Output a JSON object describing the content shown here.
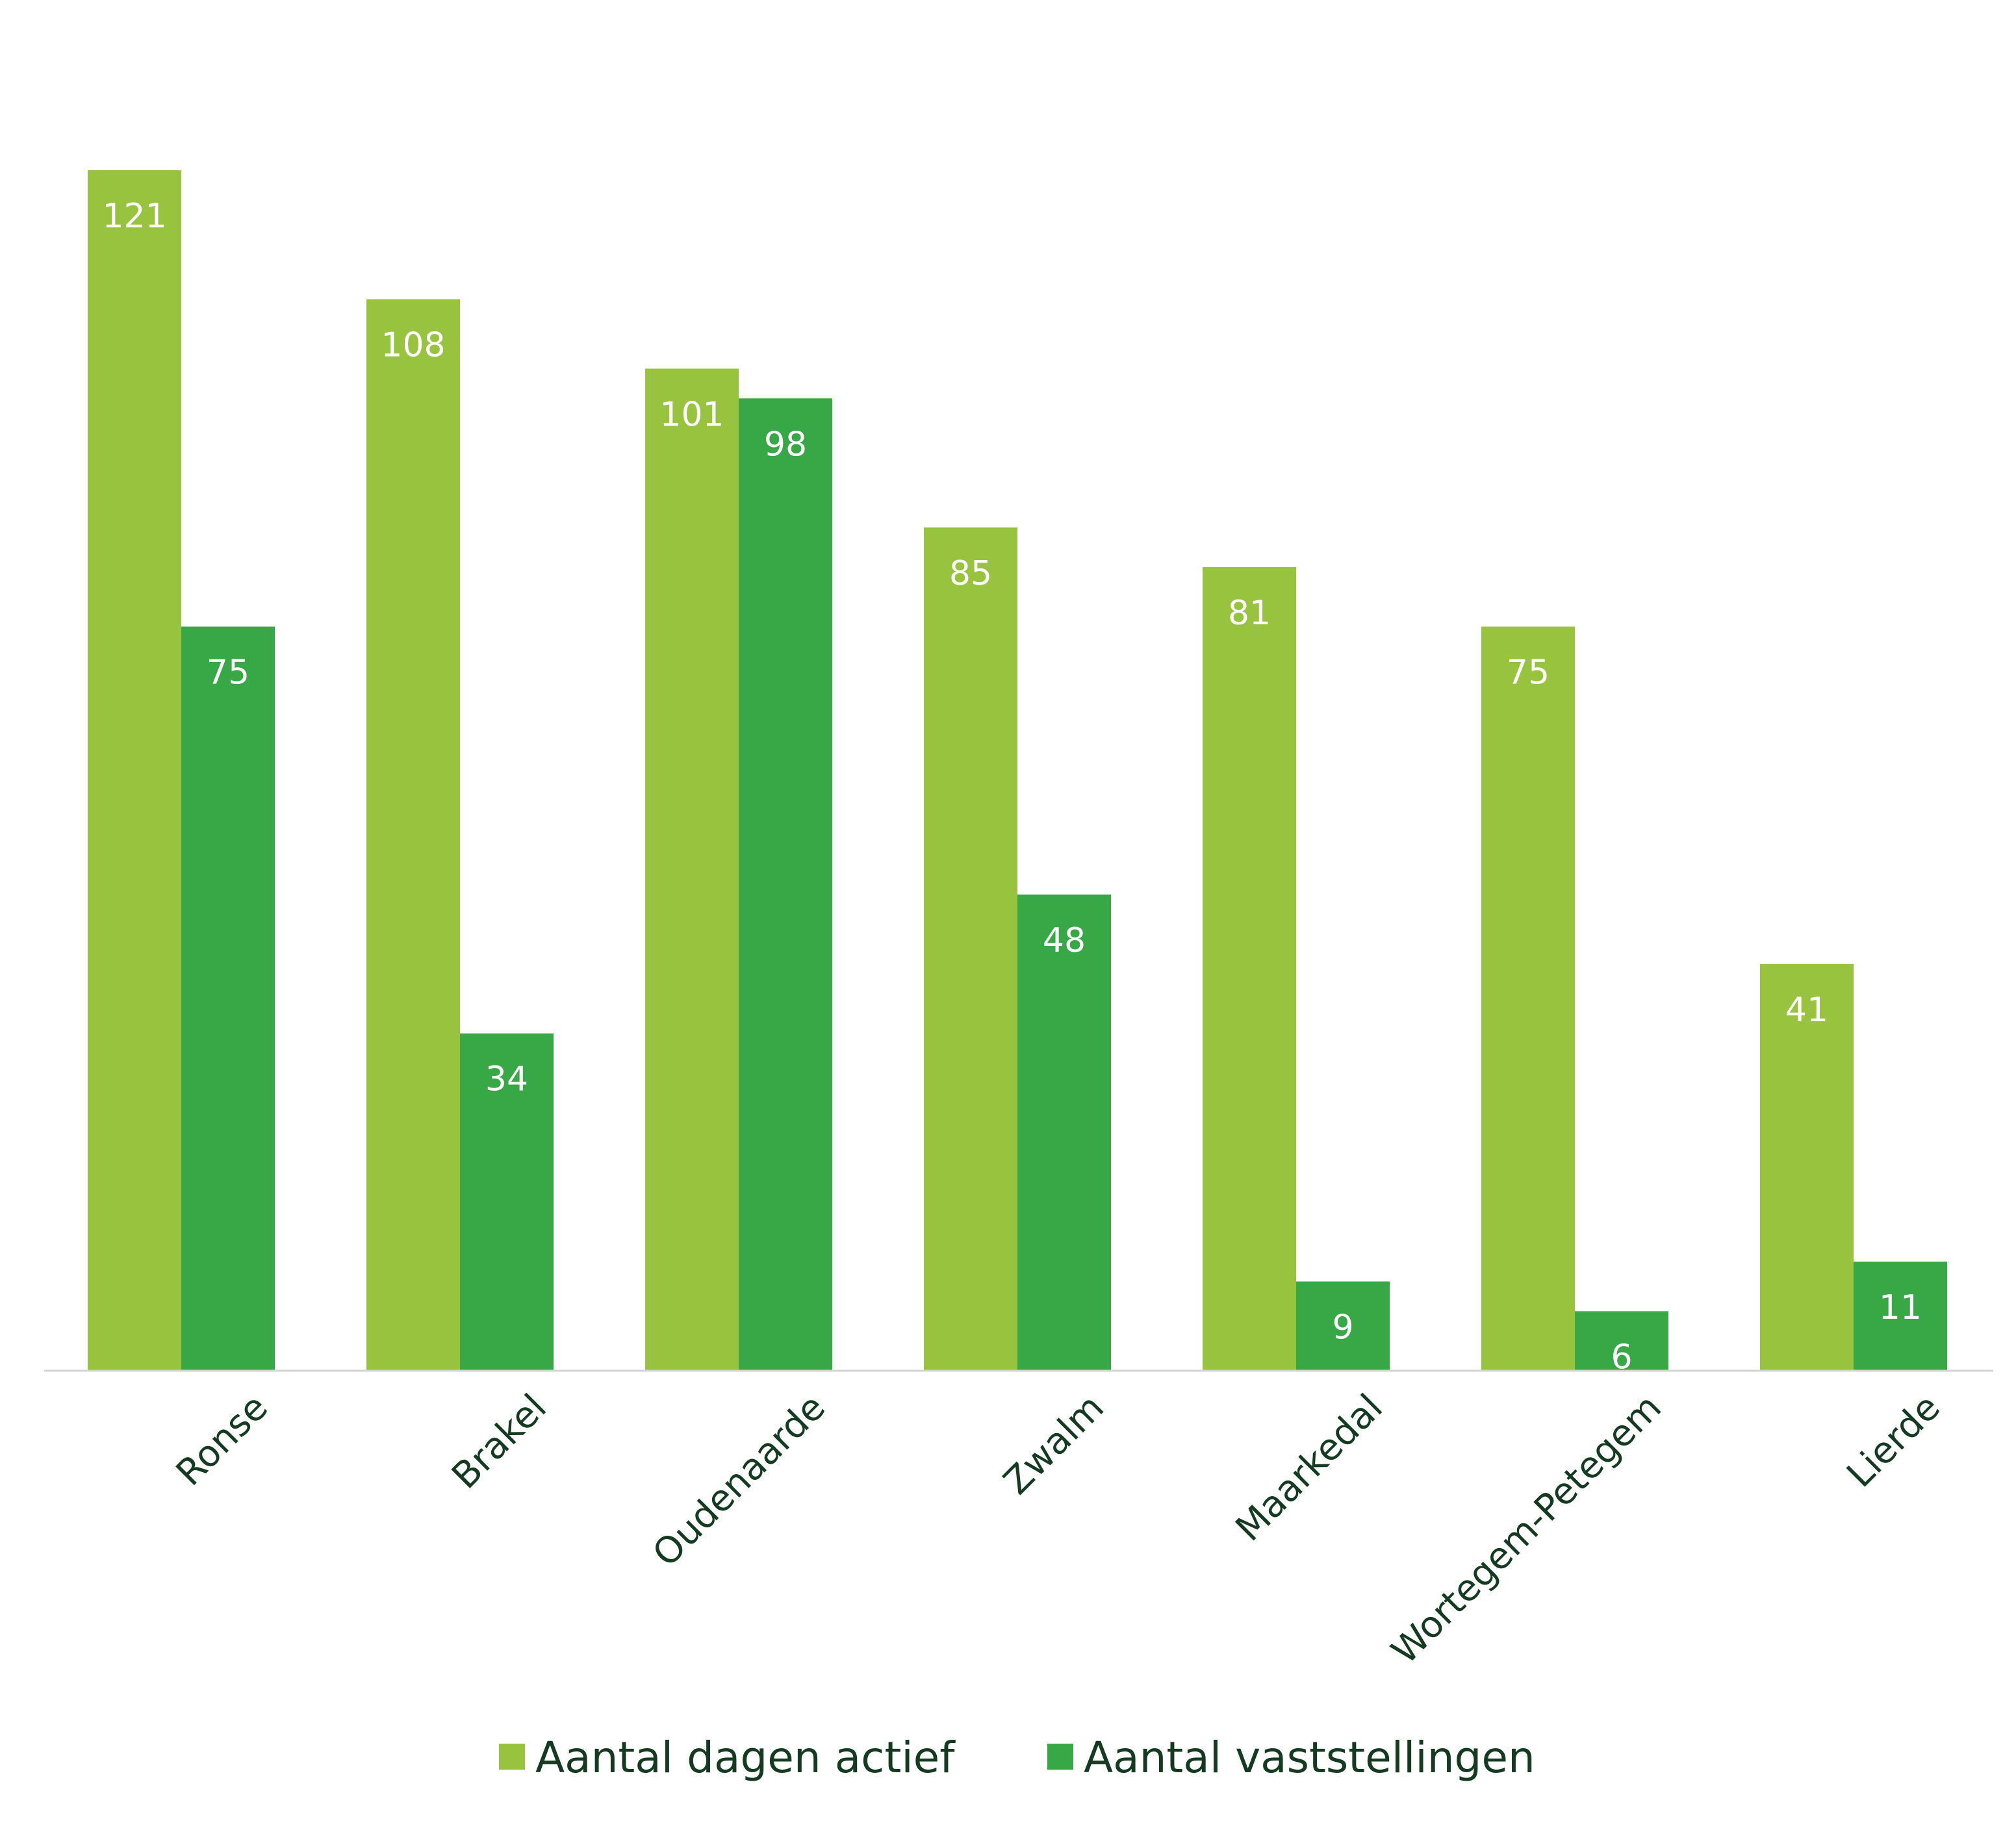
{
  "chart_data": {
    "type": "bar",
    "categories": [
      "Ronse",
      "Brakel",
      "Oudenaarde",
      "Zwalm",
      "Maarkedal",
      "Wortegem-Petegem",
      "Lierde"
    ],
    "series": [
      {
        "name": "Aantal dagen actief",
        "values": [
          121,
          108,
          101,
          85,
          81,
          75,
          41
        ],
        "color": "#98c33f"
      },
      {
        "name": "Aantal vaststellingen",
        "values": [
          75,
          34,
          98,
          48,
          9,
          6,
          11
        ],
        "color": "#38a847"
      }
    ],
    "ylim": [
      0,
      121
    ],
    "grid": false,
    "legend_position": "bottom",
    "colors": {
      "axis": "#d4d4d4",
      "label_text": "#143a21",
      "value_text": "#ffffff"
    }
  }
}
